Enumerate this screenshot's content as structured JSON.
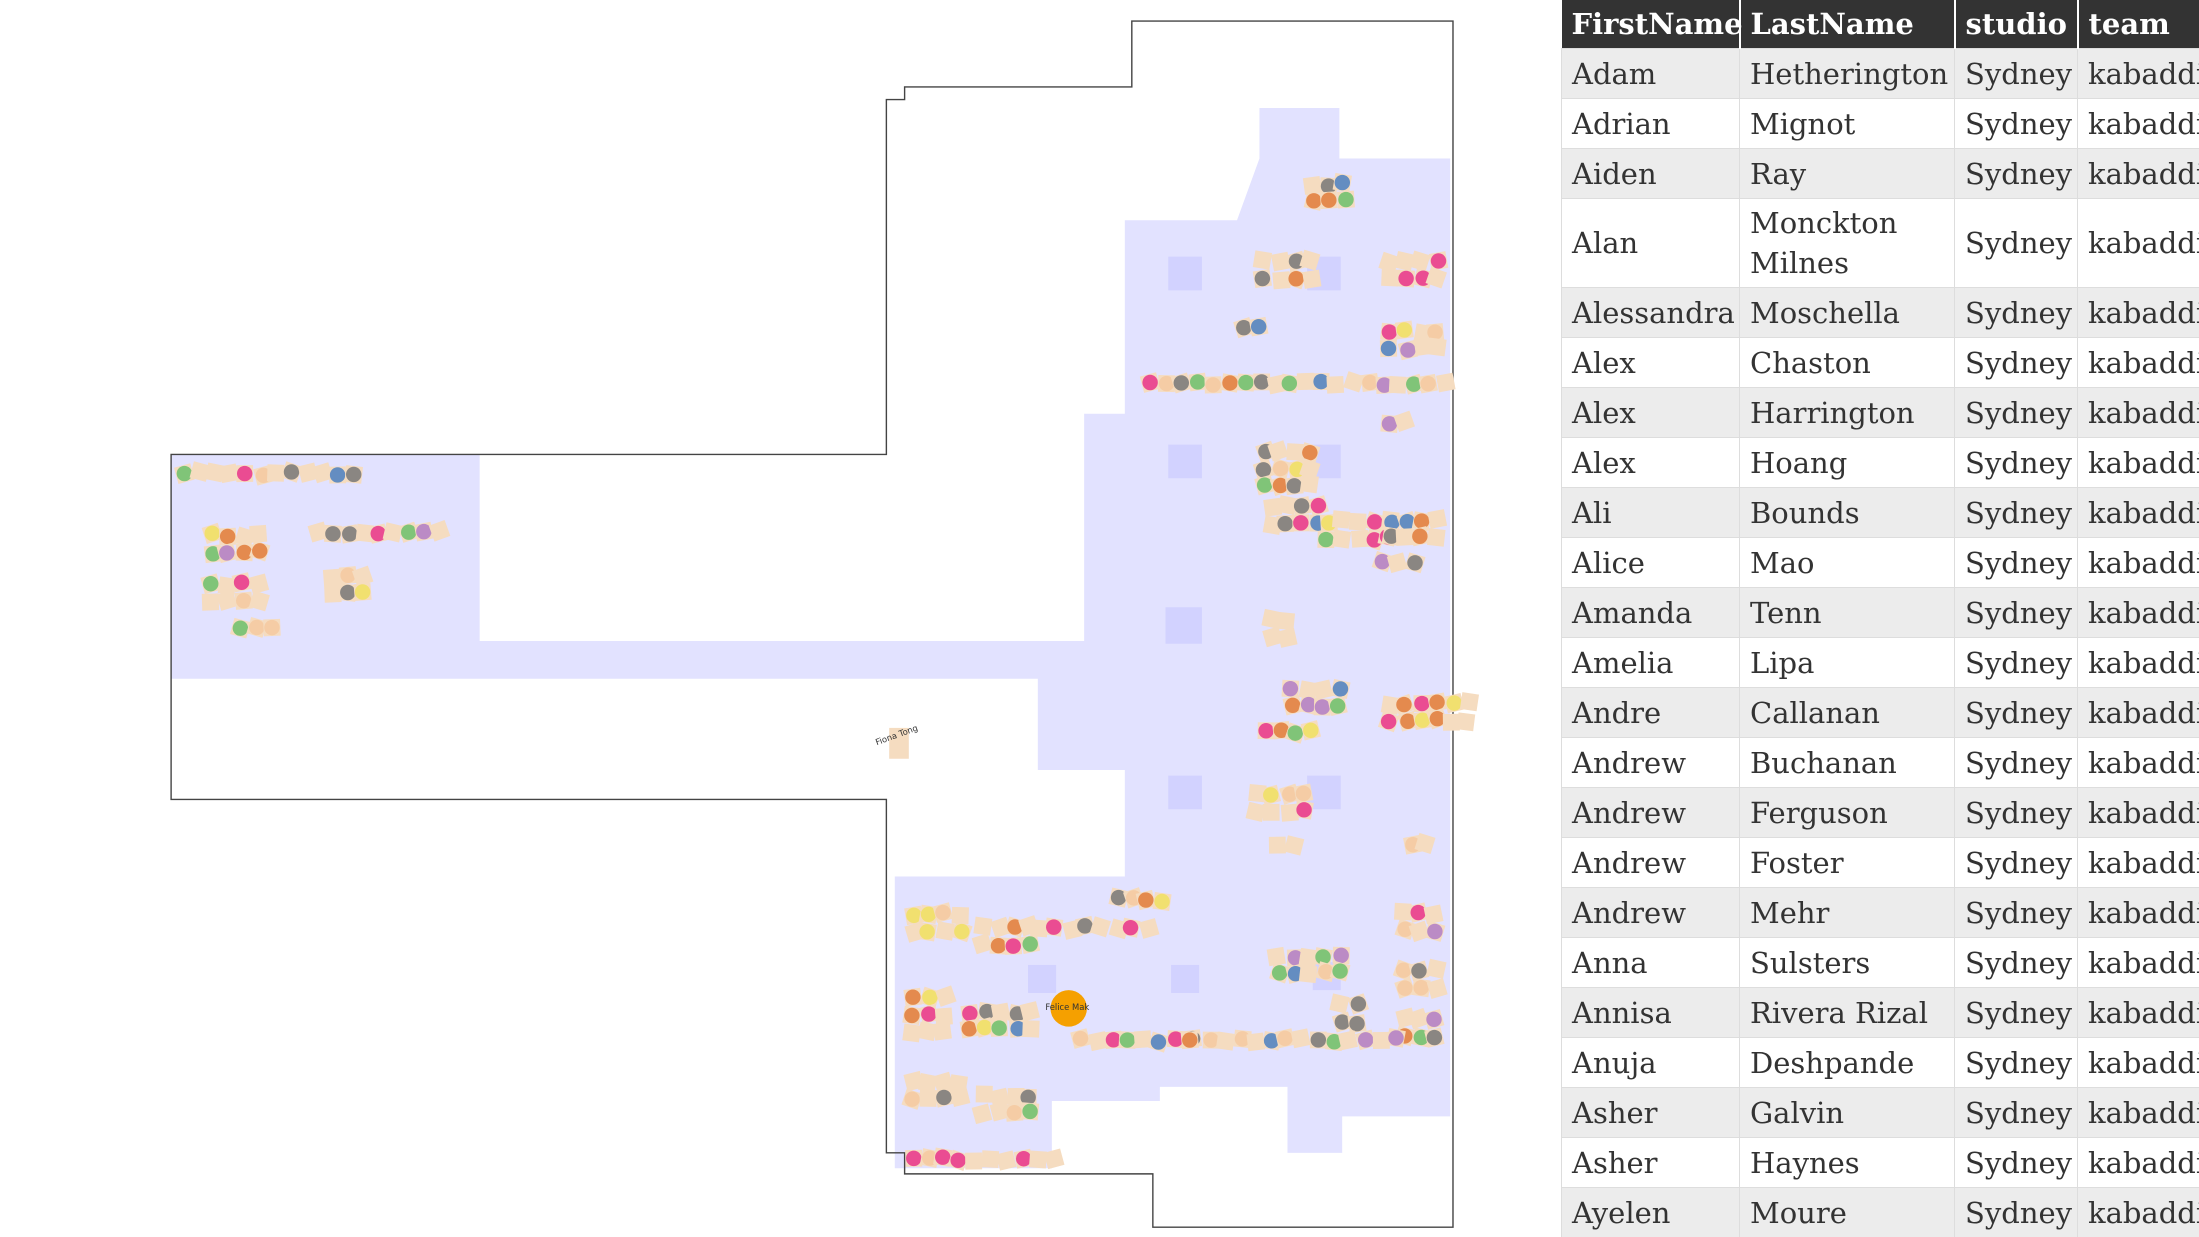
{
  "plan": {
    "labels": [
      "Fiona Tong",
      "Felice Mak"
    ]
  },
  "table": {
    "columns": [
      "FirstName",
      "LastName",
      "studio",
      "team"
    ],
    "rows": [
      [
        "Adam",
        "Hetherington",
        "Sydney",
        "kabaddi"
      ],
      [
        "Adrian",
        "Mignot",
        "Sydney",
        "kabaddi"
      ],
      [
        "Aiden",
        "Ray",
        "Sydney",
        "kabaddi"
      ],
      [
        "Alan",
        "Monckton Milnes",
        "Sydney",
        "kabaddi"
      ],
      [
        "Alessandra",
        "Moschella",
        "Sydney",
        "kabaddi"
      ],
      [
        "Alex",
        "Chaston",
        "Sydney",
        "kabaddi"
      ],
      [
        "Alex",
        "Harrington",
        "Sydney",
        "kabaddi"
      ],
      [
        "Alex",
        "Hoang",
        "Sydney",
        "kabaddi"
      ],
      [
        "Ali",
        "Bounds",
        "Sydney",
        "kabaddi"
      ],
      [
        "Alice",
        "Mao",
        "Sydney",
        "kabaddi"
      ],
      [
        "Amanda",
        "Tenn",
        "Sydney",
        "kabaddi"
      ],
      [
        "Amelia",
        "Lipa",
        "Sydney",
        "kabaddi"
      ],
      [
        "Andre",
        "Callanan",
        "Sydney",
        "kabaddi"
      ],
      [
        "Andrew",
        "Buchanan",
        "Sydney",
        "kabaddi"
      ],
      [
        "Andrew",
        "Ferguson",
        "Sydney",
        "kabaddi"
      ],
      [
        "Andrew",
        "Foster",
        "Sydney",
        "kabaddi"
      ],
      [
        "Andrew",
        "Mehr",
        "Sydney",
        "kabaddi"
      ],
      [
        "Anna",
        "Sulsters",
        "Sydney",
        "kabaddi"
      ],
      [
        "Annisa",
        "Rivera Rizal",
        "Sydney",
        "kabaddi"
      ],
      [
        "Anuja",
        "Deshpande",
        "Sydney",
        "kabaddi"
      ],
      [
        "Asher",
        "Galvin",
        "Sydney",
        "kabaddi"
      ],
      [
        "Asher",
        "Haynes",
        "Sydney",
        "kabaddi"
      ],
      [
        "Ayelen",
        "Moure",
        "Sydney",
        "kabaddi"
      ]
    ]
  }
}
